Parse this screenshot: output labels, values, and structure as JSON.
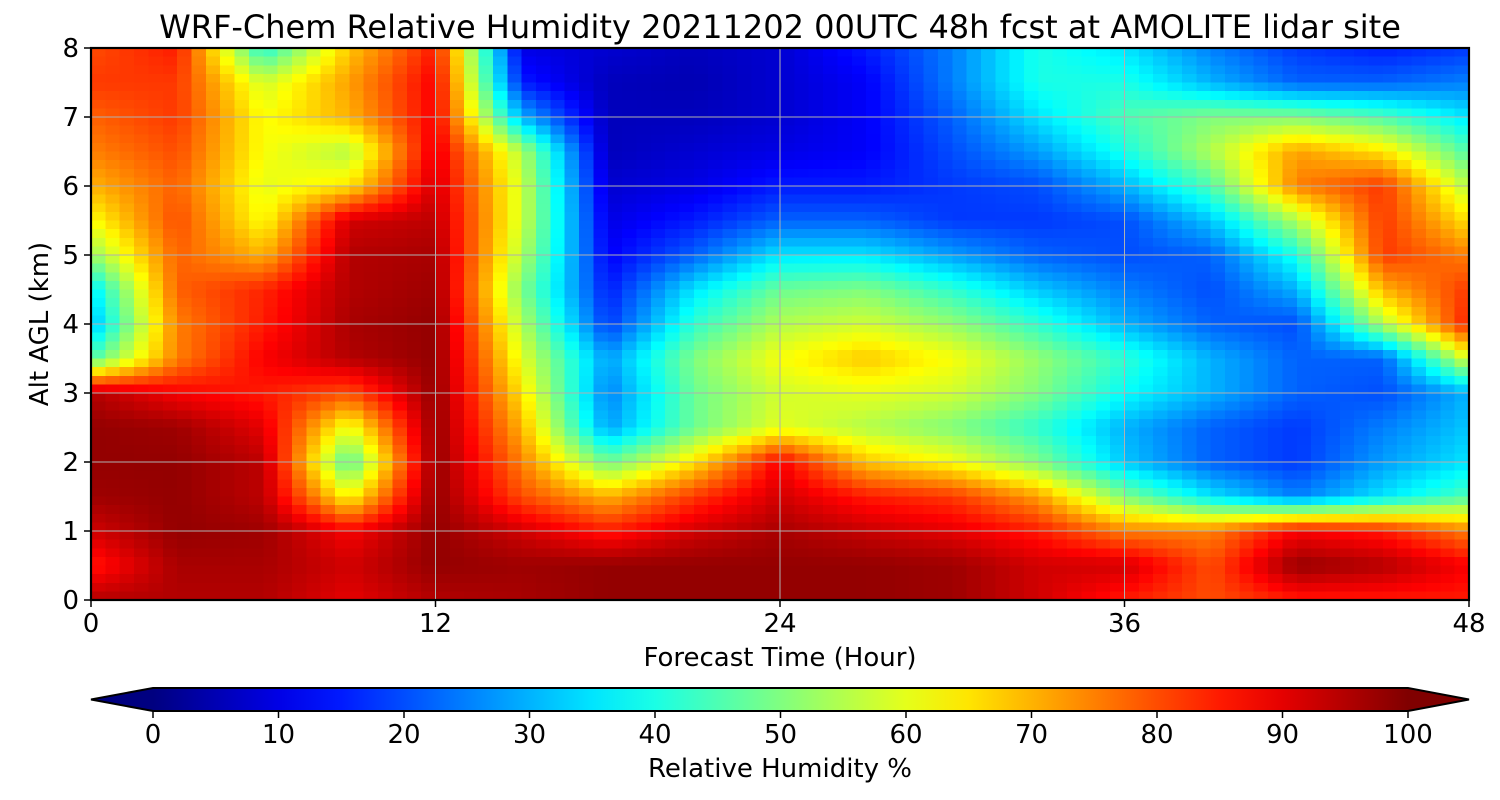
{
  "chart_data": {
    "type": "heatmap",
    "title": "WRF-Chem Relative Humidity 20211202 00UTC 48h fcst at AMOLITE lidar site",
    "xlabel": "Forecast Time (Hour)",
    "ylabel": "Alt AGL (km)",
    "xlim": [
      0,
      48
    ],
    "ylim": [
      0,
      8
    ],
    "xticks": [
      "0",
      "12",
      "24",
      "36",
      "48"
    ],
    "yticks": [
      "0",
      "1",
      "2",
      "3",
      "4",
      "5",
      "6",
      "7",
      "8"
    ],
    "grid": true,
    "colormap": "jet",
    "colorbar": {
      "label": "Relative Humidity %",
      "ticks": [
        "0",
        "10",
        "20",
        "30",
        "40",
        "50",
        "60",
        "70",
        "80",
        "90",
        "100"
      ],
      "range": [
        0,
        100
      ],
      "extend": "both"
    },
    "x_hours": [
      0,
      3,
      6,
      9,
      12,
      15,
      18,
      21,
      24,
      27,
      30,
      33,
      36,
      39,
      42,
      45,
      48
    ],
    "y_km": [
      0,
      0.5,
      1,
      1.5,
      2,
      2.5,
      3,
      3.5,
      4,
      4.5,
      5,
      5.5,
      6,
      6.5,
      7,
      7.5,
      8
    ],
    "values_rh_percent": [
      [
        95,
        95,
        95,
        90,
        95,
        96,
        98,
        98,
        98,
        98,
        97,
        92,
        85,
        80,
        85,
        85,
        85
      ],
      [
        85,
        96,
        96,
        92,
        98,
        97,
        98,
        98,
        98,
        98,
        97,
        92,
        92,
        80,
        98,
        95,
        88
      ],
      [
        92,
        98,
        97,
        88,
        98,
        92,
        85,
        92,
        96,
        93,
        90,
        85,
        75,
        75,
        88,
        85,
        75
      ],
      [
        97,
        98,
        94,
        62,
        98,
        80,
        70,
        82,
        92,
        85,
        82,
        72,
        50,
        35,
        25,
        35,
        45
      ],
      [
        98,
        98,
        94,
        45,
        98,
        75,
        48,
        65,
        88,
        68,
        62,
        50,
        32,
        22,
        18,
        28,
        35
      ],
      [
        98,
        97,
        90,
        60,
        98,
        70,
        28,
        48,
        60,
        55,
        50,
        42,
        30,
        22,
        18,
        25,
        32
      ],
      [
        95,
        88,
        85,
        80,
        98,
        65,
        25,
        48,
        58,
        60,
        58,
        50,
        38,
        30,
        22,
        20,
        30
      ],
      [
        45,
        75,
        88,
        95,
        98,
        60,
        28,
        50,
        62,
        68,
        62,
        52,
        42,
        30,
        22,
        22,
        60
      ],
      [
        30,
        75,
        85,
        96,
        98,
        55,
        18,
        42,
        55,
        58,
        52,
        42,
        30,
        22,
        20,
        55,
        85
      ],
      [
        35,
        78,
        84,
        95,
        97,
        50,
        15,
        35,
        48,
        50,
        42,
        32,
        25,
        20,
        30,
        70,
        82
      ],
      [
        52,
        78,
        70,
        95,
        96,
        55,
        12,
        22,
        35,
        35,
        28,
        22,
        20,
        22,
        40,
        82,
        75
      ],
      [
        62,
        80,
        62,
        92,
        94,
        58,
        10,
        15,
        22,
        22,
        18,
        18,
        20,
        32,
        55,
        82,
        65
      ],
      [
        70,
        78,
        60,
        65,
        92,
        58,
        8,
        10,
        15,
        15,
        18,
        20,
        30,
        45,
        75,
        82,
        55
      ],
      [
        75,
        80,
        62,
        55,
        90,
        55,
        6,
        8,
        10,
        12,
        20,
        28,
        40,
        55,
        72,
        65,
        45
      ],
      [
        78,
        82,
        62,
        70,
        88,
        30,
        6,
        6,
        8,
        12,
        22,
        35,
        45,
        50,
        50,
        45,
        35
      ],
      [
        82,
        82,
        58,
        72,
        88,
        15,
        6,
        5,
        8,
        12,
        25,
        40,
        40,
        30,
        22,
        22,
        25
      ],
      [
        80,
        85,
        40,
        68,
        85,
        10,
        8,
        6,
        8,
        15,
        25,
        40,
        35,
        25,
        18,
        15,
        18
      ]
    ]
  }
}
